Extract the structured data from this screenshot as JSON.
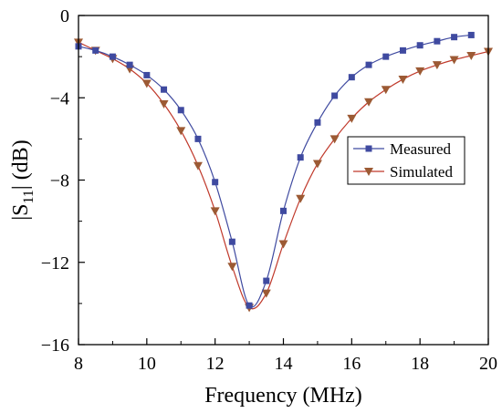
{
  "chart_data": {
    "type": "line",
    "xlabel": "Frequency (MHz)",
    "ylabel": "|S11| (dB)",
    "ylabel_parts": {
      "pre": "|S",
      "sub": "11",
      "post": "| (dB)"
    },
    "xlim": [
      8,
      20
    ],
    "ylim": [
      -16,
      0
    ],
    "xticks": [
      8,
      10,
      12,
      14,
      16,
      18,
      20
    ],
    "yticks": [
      0,
      -4,
      -8,
      -12,
      -16
    ],
    "x_tick_labels": [
      "8",
      "10",
      "12",
      "14",
      "16",
      "18",
      "20"
    ],
    "y_tick_labels": [
      "0",
      "−4",
      "−8",
      "−12",
      "−16"
    ],
    "grid": false,
    "legend_position": "right",
    "series": [
      {
        "name": "Measured",
        "color": "#3f4aa0",
        "marker": "square",
        "x": [
          8,
          8.5,
          9,
          9.5,
          10,
          10.5,
          11,
          11.5,
          12,
          12.5,
          13,
          13.5,
          14,
          14.5,
          15,
          15.5,
          16,
          16.5,
          17,
          17.5,
          18,
          18.5,
          19,
          19.5
        ],
        "y": [
          -1.5,
          -1.7,
          -2.0,
          -2.4,
          -2.9,
          -3.6,
          -4.6,
          -6.0,
          -8.1,
          -11.0,
          -14.1,
          -12.9,
          -9.5,
          -6.9,
          -5.2,
          -3.9,
          -3.0,
          -2.4,
          -2.0,
          -1.7,
          -1.45,
          -1.25,
          -1.05,
          -0.95
        ]
      },
      {
        "name": "Simulated",
        "color": "#c0392b",
        "marker_color": "#9c5a34",
        "marker": "triangle-down",
        "x": [
          8,
          8.5,
          9,
          9.5,
          10,
          10.5,
          11,
          11.5,
          12,
          12.5,
          13,
          13.5,
          14,
          14.5,
          15,
          15.5,
          16,
          16.5,
          17,
          17.5,
          18,
          18.5,
          19,
          19.5,
          20
        ],
        "y": [
          -1.3,
          -1.7,
          -2.1,
          -2.6,
          -3.3,
          -4.3,
          -5.6,
          -7.3,
          -9.5,
          -12.2,
          -14.2,
          -13.5,
          -11.1,
          -8.9,
          -7.2,
          -6.0,
          -5.0,
          -4.2,
          -3.6,
          -3.1,
          -2.7,
          -2.4,
          -2.15,
          -1.95,
          -1.75
        ]
      }
    ]
  }
}
